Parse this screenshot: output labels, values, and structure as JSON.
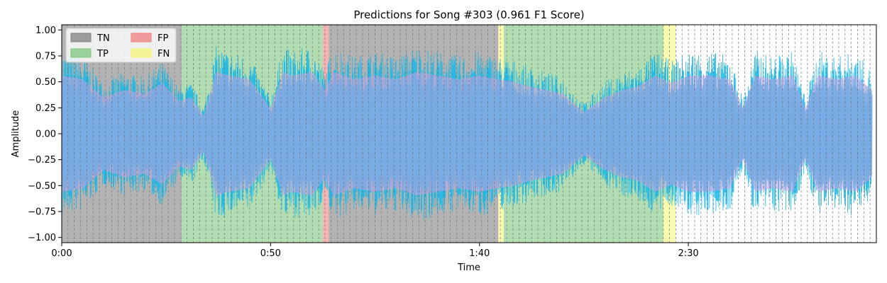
{
  "chart_data": {
    "type": "area",
    "title": "Predictions for Song #303 (0.961 F1 Score)",
    "xlabel": "Time",
    "ylabel": "Amplitude",
    "xlim": [
      0,
      195
    ],
    "ylim": [
      -1.05,
      1.05
    ],
    "x_ticks": [
      {
        "value": 0,
        "label": "0:00"
      },
      {
        "value": 50,
        "label": "0:50"
      },
      {
        "value": 100,
        "label": "1:40"
      },
      {
        "value": 150,
        "label": "2:30"
      }
    ],
    "y_ticks": [
      {
        "value": 1.0,
        "label": "1.00"
      },
      {
        "value": 0.75,
        "label": "0.75"
      },
      {
        "value": 0.5,
        "label": "0.50"
      },
      {
        "value": 0.25,
        "label": "0.25"
      },
      {
        "value": 0.0,
        "label": "0.00"
      },
      {
        "value": -0.25,
        "label": "−0.25"
      },
      {
        "value": -0.5,
        "label": "−0.50"
      },
      {
        "value": -0.75,
        "label": "−0.75"
      },
      {
        "value": -1.0,
        "label": "−1.00"
      }
    ],
    "legend": {
      "placement": "top-left",
      "entries": [
        {
          "name": "TN",
          "color": "#808080"
        },
        {
          "name": "TP",
          "color": "#7fc77f"
        },
        {
          "name": "FP",
          "color": "#f08080"
        },
        {
          "name": "FN",
          "color": "#f5f57a"
        }
      ]
    },
    "segments": [
      {
        "label": "TN",
        "start": 0,
        "end": 28.7
      },
      {
        "label": "TP",
        "start": 28.7,
        "end": 62.5
      },
      {
        "label": "FP",
        "start": 62.5,
        "end": 63.9
      },
      {
        "label": "TN",
        "start": 63.9,
        "end": 104.5
      },
      {
        "label": "FN",
        "start": 104.5,
        "end": 105.8
      },
      {
        "label": "TP",
        "start": 105.8,
        "end": 144.0
      },
      {
        "label": "FN",
        "start": 144.0,
        "end": 146.9
      }
    ],
    "frame_boundary_interval": 1.5,
    "waveform_envelope": {
      "time": [
        0,
        5,
        10,
        15,
        20,
        24,
        28,
        31,
        34,
        37,
        40,
        45,
        50,
        53,
        55,
        60,
        63,
        65,
        70,
        75,
        80,
        85,
        90,
        95,
        100,
        104,
        108,
        112,
        116,
        120,
        125,
        130,
        134,
        138,
        142,
        146,
        150,
        155,
        160,
        163,
        166,
        170,
        175,
        178,
        181,
        186,
        190,
        194
      ],
      "top": [
        0.8,
        0.75,
        0.5,
        0.6,
        0.55,
        0.7,
        0.45,
        0.5,
        0.25,
        0.85,
        0.8,
        0.75,
        0.35,
        0.85,
        0.8,
        0.85,
        0.6,
        0.85,
        0.75,
        0.8,
        0.75,
        0.85,
        0.8,
        0.75,
        0.8,
        0.75,
        0.72,
        0.65,
        0.6,
        0.55,
        0.3,
        0.5,
        0.6,
        0.65,
        0.8,
        0.7,
        0.8,
        0.8,
        0.75,
        0.35,
        0.8,
        0.75,
        0.8,
        0.35,
        0.8,
        0.75,
        0.8,
        0.6
      ],
      "bottom": [
        -0.8,
        -0.75,
        -0.5,
        -0.6,
        -0.55,
        -0.7,
        -0.45,
        -0.5,
        -0.25,
        -0.85,
        -0.8,
        -0.75,
        -0.35,
        -0.85,
        -0.8,
        -0.85,
        -0.6,
        -0.85,
        -0.75,
        -0.8,
        -0.75,
        -0.85,
        -0.8,
        -0.75,
        -0.8,
        -0.75,
        -0.72,
        -0.65,
        -0.6,
        -0.55,
        -0.3,
        -0.5,
        -0.6,
        -0.65,
        -0.8,
        -0.7,
        -0.8,
        -0.8,
        -0.75,
        -0.35,
        -0.8,
        -0.75,
        -0.8,
        -0.35,
        -0.8,
        -0.75,
        -0.8,
        -0.6
      ]
    },
    "grid": false,
    "colors": {
      "waveform": "#1ab8e8",
      "overlay": "#c8a0e0",
      "boundary_line": "#666666"
    }
  }
}
